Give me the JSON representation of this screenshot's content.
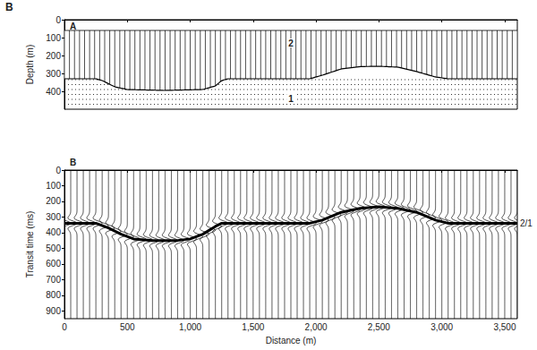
{
  "label": "B",
  "chart_data": [
    {
      "type": "cross_section",
      "panel_label": "A",
      "ylabel": "Depth (m)",
      "xlim": [
        0,
        3600
      ],
      "xticks": [
        0,
        500,
        1000,
        1500,
        2000,
        2500,
        3000,
        3500
      ],
      "ylim": [
        0,
        500
      ],
      "yticks": [
        0,
        100,
        200,
        300,
        400
      ],
      "tick_labels": "y",
      "grid": false,
      "color": "#000000",
      "layer_top": 60,
      "boundary": {
        "x": [
          0,
          250,
          300,
          400,
          500,
          800,
          1100,
          1200,
          1250,
          1300,
          1950,
          2050,
          2200,
          2350,
          2500,
          2650,
          2800,
          2950,
          3050,
          3600
        ],
        "y": [
          330,
          330,
          340,
          375,
          390,
          395,
          390,
          370,
          340,
          330,
          330,
          310,
          275,
          262,
          260,
          265,
          290,
          320,
          330,
          330
        ]
      },
      "annotations": [
        {
          "text": "2",
          "x": 1800,
          "y": 130
        },
        {
          "text": "1",
          "x": 1800,
          "y": 440
        }
      ]
    },
    {
      "type": "seismogram",
      "panel_label": "B",
      "xlabel": "Distance (m)",
      "ylabel": "Transit time (ms)",
      "xlim": [
        0,
        3600
      ],
      "xticks": [
        0,
        500,
        {
          "value": 1000,
          "label": "1,000"
        },
        {
          "value": 1500,
          "label": "1,500"
        },
        {
          "value": 2000,
          "label": "2,000"
        },
        {
          "value": 2500,
          "label": "2,500"
        },
        {
          "value": 3000,
          "label": "3,000"
        },
        {
          "value": 3500,
          "label": "3,500"
        }
      ],
      "ylim": [
        0,
        950
      ],
      "yticks": [
        0,
        100,
        200,
        300,
        400,
        500,
        600,
        700,
        800,
        900
      ],
      "grid": false,
      "traces_x": [
        0,
        50,
        100,
        150,
        200,
        250,
        300,
        350,
        400,
        450,
        500,
        550,
        600,
        650,
        700,
        750,
        800,
        850,
        900,
        950,
        1000,
        1050,
        1100,
        1150,
        1200,
        1250,
        1300,
        1350,
        1400,
        1450,
        1500,
        1550,
        1600,
        1650,
        1700,
        1750,
        1800,
        1850,
        1900,
        1950,
        2000,
        2050,
        2100,
        2150,
        2200,
        2250,
        2300,
        2350,
        2400,
        2450,
        2500,
        2550,
        2600,
        2650,
        2700,
        2750,
        2800,
        2850,
        2900,
        2950,
        3000,
        3050,
        3100,
        3150,
        3200,
        3250,
        3300,
        3350,
        3400,
        3450,
        3500,
        3550,
        3600
      ],
      "series": [
        {
          "name": "2/1",
          "color": "#000000",
          "x": [
            0,
            250,
            350,
            450,
            550,
            700,
            900,
            1000,
            1100,
            1200,
            1250,
            1950,
            2050,
            2200,
            2350,
            2500,
            2650,
            2800,
            2950,
            3050,
            3600
          ],
          "values": [
            340,
            340,
            370,
            410,
            440,
            450,
            450,
            440,
            410,
            360,
            340,
            340,
            320,
            270,
            245,
            235,
            245,
            270,
            320,
            340,
            340
          ]
        }
      ]
    }
  ]
}
